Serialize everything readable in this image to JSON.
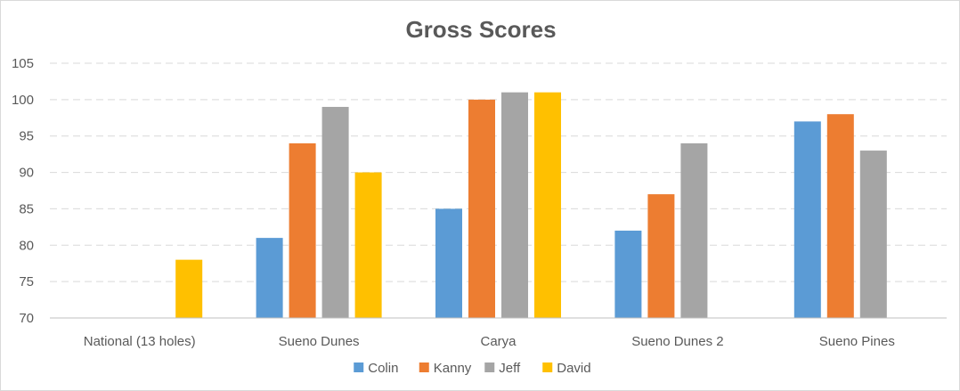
{
  "chart_data": {
    "type": "bar",
    "title": "Gross Scores",
    "xlabel": "",
    "ylabel": "",
    "ylim": [
      70,
      105
    ],
    "yticks": [
      "70",
      "75",
      "80",
      "85",
      "90",
      "95",
      "100",
      "105"
    ],
    "grid": true,
    "legend_position": "bottom",
    "categories": [
      "National (13 holes)",
      "Sueno Dunes",
      "Carya",
      "Sueno Dunes 2",
      "Sueno Pines"
    ],
    "series": [
      {
        "name": "Colin",
        "color": "#5b9bd5",
        "values": [
          null,
          81,
          85,
          82,
          97
        ]
      },
      {
        "name": "Kanny",
        "color": "#ed7d31",
        "values": [
          null,
          94,
          100,
          87,
          98
        ]
      },
      {
        "name": "Jeff",
        "color": "#a5a5a5",
        "values": [
          null,
          99,
          101,
          94,
          93
        ]
      },
      {
        "name": "David",
        "color": "#ffc000",
        "values": [
          78,
          90,
          101,
          null,
          null
        ]
      }
    ]
  }
}
